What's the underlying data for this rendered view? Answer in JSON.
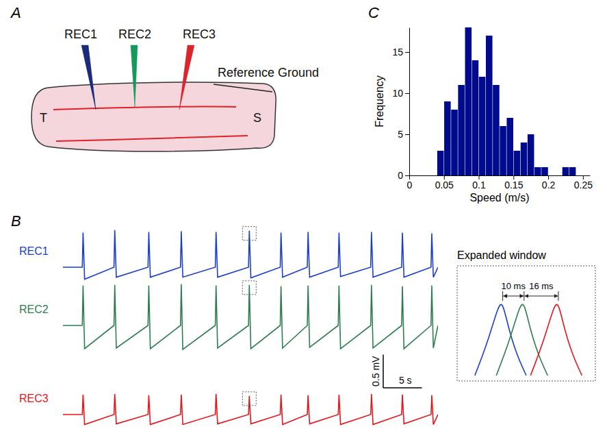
{
  "panel_labels": [
    "A",
    "B",
    "C"
  ],
  "diagram": {
    "electrodes": [
      {
        "label": "REC1",
        "color": "#1c2a7a"
      },
      {
        "label": "REC2",
        "color": "#169a5b"
      },
      {
        "label": "REC3",
        "color": "#d9262c"
      }
    ],
    "reference": "Reference Ground",
    "ends": [
      "T",
      "S"
    ]
  },
  "chart_data": [
    {
      "type": "line",
      "tick_labels": false,
      "xlim": [
        0,
        48.5
      ],
      "ylim": [
        -0.4,
        0.65
      ],
      "x": [
        0,
        2.5,
        2.6,
        2.8,
        6.6,
        6.7,
        6.9,
        11.0,
        11.1,
        11.3,
        15.2,
        15.3,
        15.5,
        19.7,
        19.8,
        20.0,
        24.0,
        24.1,
        24.3,
        28.1,
        28.2,
        28.4,
        31.6,
        31.7,
        31.9,
        35.6,
        35.7,
        35.9,
        39.8,
        39.9,
        40.1,
        43.8,
        43.9,
        44.1,
        47.6,
        47.7,
        47.9,
        48.5
      ],
      "series": [
        {
          "name": "REC1",
          "color": "#1a3fd0",
          "values": [
            0,
            0,
            0.52,
            -0.18,
            0,
            0.56,
            -0.15,
            0,
            0.53,
            -0.15,
            0,
            0.54,
            -0.15,
            0,
            0.53,
            -0.15,
            0,
            0.55,
            -0.16,
            0,
            0.52,
            -0.15,
            0,
            0.53,
            -0.15,
            0,
            0.52,
            -0.14,
            0,
            0.53,
            -0.15,
            0,
            0.52,
            -0.15,
            0,
            0.51,
            -0.15,
            0
          ]
        },
        {
          "name": "REC2",
          "color": "#2e7d4f",
          "values": [
            0,
            0,
            0.6,
            -0.35,
            0,
            0.61,
            -0.34,
            0,
            0.6,
            -0.35,
            0,
            0.62,
            -0.36,
            0,
            0.6,
            -0.34,
            0,
            0.61,
            -0.35,
            0,
            0.59,
            -0.34,
            0,
            0.6,
            -0.33,
            0,
            0.6,
            -0.35,
            0,
            0.61,
            -0.34,
            0,
            0.59,
            -0.35,
            0,
            0.6,
            -0.34,
            0
          ]
        },
        {
          "name": "REC3",
          "color": "#e8161b",
          "values": [
            0,
            0,
            0.3,
            -0.15,
            0,
            0.31,
            -0.14,
            0,
            0.29,
            -0.15,
            0,
            0.3,
            -0.15,
            0,
            0.31,
            -0.14,
            0,
            0.28,
            -0.14,
            0,
            0.3,
            -0.15,
            0,
            0.29,
            -0.14,
            0,
            0.3,
            -0.15,
            0,
            0.31,
            -0.15,
            0,
            0.3,
            -0.14,
            0,
            0.29,
            -0.15,
            0
          ]
        }
      ],
      "scale_bar": {
        "x": 5,
        "x_label": "5 s",
        "y": 0.5,
        "y_label": "0.5 mV"
      },
      "inset": {
        "title": "Expanded window",
        "xlim": [
          -20,
          42
        ],
        "delays": [
          {
            "value": 10,
            "label": "10 ms"
          },
          {
            "value": 16,
            "label": "16 ms"
          }
        ]
      }
    },
    {
      "type": "histogram",
      "xlabel": "Speed (m/s)",
      "ylabel": "Frequency",
      "color": "#000a8c",
      "bins": [
        0.04,
        0.05,
        0.06,
        0.07,
        0.08,
        0.09,
        0.1,
        0.11,
        0.12,
        0.13,
        0.14,
        0.15,
        0.16,
        0.17,
        0.18,
        0.19,
        0.2,
        0.21,
        0.22,
        0.23,
        0.24
      ],
      "values": [
        3,
        9,
        8,
        11,
        18,
        14,
        12,
        17,
        11,
        6,
        7,
        3,
        4,
        5,
        1,
        1,
        0,
        0,
        1,
        1
      ],
      "xlim": [
        0,
        0.26
      ],
      "ylim": [
        0,
        18
      ],
      "xticks": [
        0,
        0.05,
        0.1,
        0.15,
        0.2,
        0.25
      ],
      "yticks": [
        0,
        5,
        10,
        15
      ]
    }
  ]
}
